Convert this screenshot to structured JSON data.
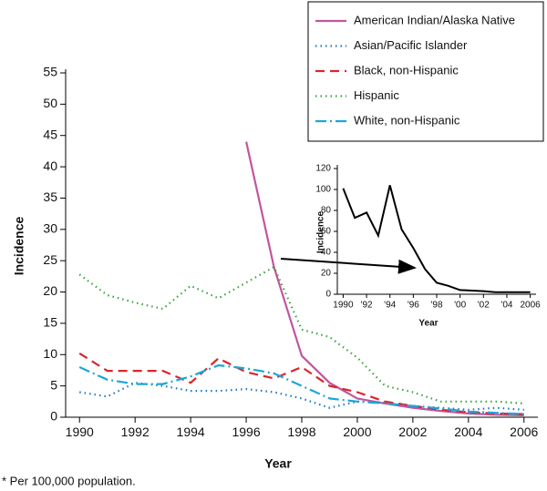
{
  "chart_data": [
    {
      "type": "line",
      "x_label": "Year",
      "y_label": "Incidence",
      "note": "* Per 100,000 population.",
      "x": [
        1990,
        1991,
        1992,
        1993,
        1994,
        1995,
        1996,
        1997,
        1998,
        1999,
        2000,
        2001,
        2002,
        2003,
        2004,
        2005,
        2006
      ],
      "series": [
        {
          "name": "American Indian/Alaska Native",
          "color": "#c2559f",
          "dash": "solid",
          "values": [
            null,
            null,
            null,
            null,
            null,
            null,
            44,
            24,
            9.8,
            5.5,
            3,
            2.2,
            1.5,
            1,
            0.6,
            0.4,
            0.3
          ]
        },
        {
          "name": "Asian/Pacific Islander",
          "color": "#1f78c1",
          "dash": "dotted",
          "values": [
            4,
            3.3,
            5.5,
            5,
            4.2,
            4.2,
            4.5,
            4,
            3,
            1.5,
            2.5,
            2.3,
            1.8,
            1.5,
            1.2,
            1.5,
            1.2
          ]
        },
        {
          "name": "Black, non-Hispanic",
          "color": "#d9262e",
          "dash": "dashed",
          "values": [
            10.2,
            7.4,
            7.4,
            7.4,
            5.5,
            9.4,
            7.2,
            6.2,
            8,
            5,
            4,
            2.5,
            1.8,
            1.2,
            0.8,
            0.6,
            0.5
          ]
        },
        {
          "name": "Hispanic",
          "color": "#3ea33c",
          "dash": "dotted",
          "values": [
            22.8,
            19.5,
            18.3,
            17.3,
            21,
            19,
            21.5,
            24,
            14,
            12.8,
            9.5,
            5,
            4,
            2.5,
            2.5,
            2.5,
            2.2
          ]
        },
        {
          "name": "White, non-Hispanic",
          "color": "#1ba6d8",
          "dash": "dashdot",
          "values": [
            8,
            6,
            5.3,
            5.3,
            6.5,
            8.3,
            7.8,
            7,
            5,
            3,
            2.5,
            2.2,
            1.8,
            1.4,
            0.9,
            0.7,
            0.5
          ]
        }
      ],
      "xlim": [
        1989.5,
        2006.5
      ],
      "xticks": [
        1990,
        1992,
        1994,
        1996,
        1998,
        2000,
        2002,
        2004,
        2006
      ],
      "ylim": [
        0,
        55
      ],
      "yticks": [
        0,
        5,
        10,
        15,
        20,
        25,
        30,
        35,
        40,
        45,
        50,
        55
      ],
      "legend": "top-right"
    },
    {
      "type": "line",
      "x_label": "Year",
      "y_label": "Incidence",
      "x": [
        1990,
        1991,
        1992,
        1993,
        1994,
        1995,
        1996,
        1997,
        1998,
        1999,
        2000,
        2001,
        2002,
        2003,
        2004,
        2005,
        2006
      ],
      "series": [
        {
          "color": "#000000",
          "dash": "solid",
          "values": [
            101,
            73,
            78,
            56,
            104,
            62,
            44,
            24,
            11,
            8,
            4,
            3.5,
            3,
            2,
            2,
            2,
            2
          ]
        }
      ],
      "xlim": [
        1989.5,
        2006.5
      ],
      "xticks": [
        {
          "value": 1990,
          "label": "1990"
        },
        {
          "value": 1992,
          "label": "'92"
        },
        {
          "value": 1994,
          "label": "'94"
        },
        {
          "value": 1996,
          "label": "'96"
        },
        {
          "value": 1998,
          "label": "'98"
        },
        {
          "value": 2000,
          "label": "'00"
        },
        {
          "value": 2002,
          "label": "'02"
        },
        {
          "value": 2004,
          "label": "'04"
        },
        {
          "value": 2006,
          "label": "2006"
        }
      ],
      "ylim": [
        0,
        120
      ],
      "yticks": [
        0,
        20,
        40,
        60,
        80,
        100,
        120
      ]
    }
  ]
}
